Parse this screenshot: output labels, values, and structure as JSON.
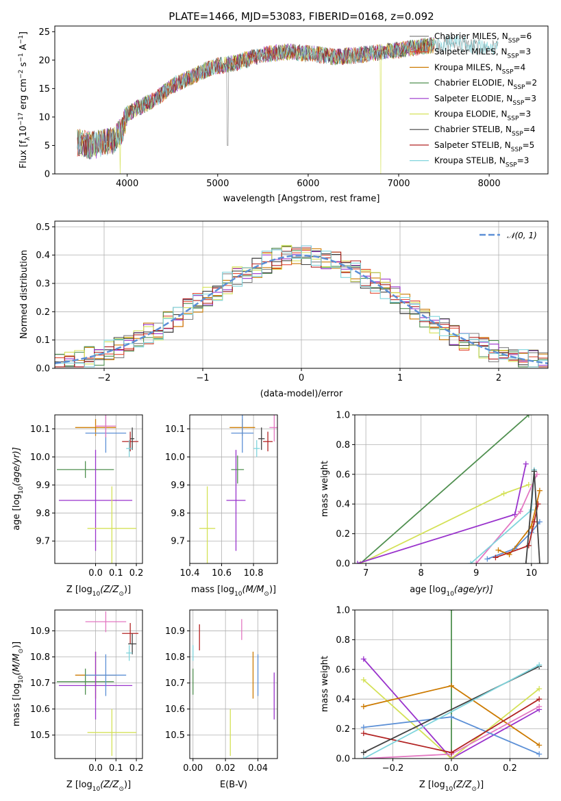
{
  "chart_data": [
    {
      "id": "spectrum",
      "type": "line",
      "title": "PLATE=1466, MJD=53083, FIBERID=0168, z=0.092",
      "xlabel": "wavelength [Angstrom, rest frame]",
      "ylabel": "Flux [f$_\\lambda$10$^{-17}$ erg cm$^{-2}$ s$^{-1}$ A$^{-1}$]",
      "ylabel_parts": [
        "Flux [f",
        "λ",
        "10",
        "−17",
        " erg cm",
        "−2",
        " s",
        "−1",
        " A",
        "−1",
        "]"
      ],
      "xlim": [
        3200,
        8650
      ],
      "ylim": [
        0,
        26
      ],
      "xticks": [
        4000,
        5000,
        6000,
        7000,
        8000
      ],
      "yticks": [
        0,
        5,
        10,
        15,
        20,
        25
      ],
      "legend_position": "right",
      "series": [
        {
          "name": "Chabrier MILES, N$_{SSP}$=6",
          "label_main": "Chabrier MILES, N",
          "label_sub": "SSP",
          "label_tail": "=6",
          "color": "#808080"
        },
        {
          "name": "Salpeter MILES, N$_{SSP}$=3",
          "label_main": "Salpeter MILES, N",
          "label_sub": "SSP",
          "label_tail": "=3",
          "color": "#e34a33"
        },
        {
          "name": "Kroupa MILES, N$_{SSP}$=4",
          "label_main": "Kroupa MILES, N",
          "label_sub": "SSP",
          "label_tail": "=4",
          "color": "#cc7a00"
        },
        {
          "name": "Chabrier ELODIE, N$_{SSP}$=2",
          "label_main": "Chabrier ELODIE, N",
          "label_sub": "SSP",
          "label_tail": "=2",
          "color": "#4f8f4f"
        },
        {
          "name": "Salpeter ELODIE, N$_{SSP}$=3",
          "label_main": "Salpeter ELODIE, N",
          "label_sub": "SSP",
          "label_tail": "=3",
          "color": "#9932cc"
        },
        {
          "name": "Kroupa ELODIE, N$_{SSP}$=3",
          "label_main": "Kroupa ELODIE, N",
          "label_sub": "SSP",
          "label_tail": "=3",
          "color": "#d4e157"
        },
        {
          "name": "Chabrier STELIB, N$_{SSP}$=4",
          "label_main": "Chabrier STELIB, N",
          "label_sub": "SSP",
          "label_tail": "=4",
          "color": "#404040"
        },
        {
          "name": "Salpeter STELIB, N$_{SSP}$=5",
          "label_main": "Salpeter STELIB, N",
          "label_sub": "SSP",
          "label_tail": "=5",
          "color": "#b22222"
        },
        {
          "name": "Kroupa STELIB, N$_{SSP}$=3",
          "label_main": "Kroupa STELIB, N",
          "label_sub": "SSP",
          "label_tail": "=3",
          "color": "#7fd4dc"
        }
      ],
      "continuum_knots": [
        [
          3450,
          5.5
        ],
        [
          3600,
          5
        ],
        [
          3750,
          5.5
        ],
        [
          3850,
          5.8
        ],
        [
          3950,
          8
        ],
        [
          4000,
          10.5
        ],
        [
          4100,
          11.5
        ],
        [
          4300,
          13
        ],
        [
          4500,
          15.5
        ],
        [
          4700,
          17
        ],
        [
          4900,
          18.5
        ],
        [
          5000,
          19
        ],
        [
          5200,
          19.5
        ],
        [
          5500,
          21
        ],
        [
          5800,
          21.5
        ],
        [
          6100,
          21
        ],
        [
          6300,
          20.5
        ],
        [
          6600,
          21
        ],
        [
          7000,
          21.8
        ],
        [
          7300,
          22.5
        ],
        [
          7600,
          23
        ],
        [
          8000,
          22
        ],
        [
          8100,
          22.5
        ]
      ],
      "end_x": {
        "default": 4050,
        "first_group": 7400,
        "extended": 8100
      },
      "spikes": [
        {
          "x": 5110,
          "y": 5
        },
        {
          "x": 6800,
          "y": 0
        },
        {
          "x": 7410,
          "y": 0
        },
        {
          "x": 3920,
          "y": 0
        }
      ]
    },
    {
      "id": "residual-hist",
      "type": "step",
      "xlabel": "(data-model)/error",
      "ylabel": "Normed distribution",
      "xlim": [
        -2.5,
        2.5
      ],
      "ylim": [
        0,
        0.52
      ],
      "xticks": [
        -2,
        -1,
        0,
        1,
        2
      ],
      "xtick_labels": [
        "−2",
        "−1",
        "0",
        "1",
        "2"
      ],
      "yticks": [
        0,
        0.1,
        0.2,
        0.3,
        0.4,
        0.5
      ],
      "ytick_labels": [
        "0.0",
        "0.1",
        "0.2",
        "0.3",
        "0.4",
        "0.5"
      ],
      "bin_width": 0.1,
      "gaussian_label": "𝒩(0, 1)",
      "gaussian_color": "#5b8fd6",
      "series_colors": [
        "#808080",
        "#e34a33",
        "#cc7a00",
        "#4f8f4f",
        "#9932cc",
        "#d4e157",
        "#404040",
        "#b22222",
        "#7fd4dc"
      ]
    },
    {
      "id": "age-vs-Z",
      "type": "errorbar",
      "xlabel_main": "Z [log",
      "xlabel_sub": "10",
      "xlabel_tail": "(Z/Z",
      "xlabel_end": ")]",
      "ylabel_main": "age  [log",
      "ylabel_sub": "10",
      "ylabel_tail": "(age/yr)]",
      "xlim": [
        -0.2,
        0.23
      ],
      "ylim": [
        9.62,
        10.15
      ],
      "xticks": [
        0.0,
        0.1,
        0.2
      ],
      "xtick_labels": [
        "0.0",
        "0.1",
        "0.2"
      ],
      "yticks": [
        9.7,
        9.8,
        9.9,
        10.0,
        10.1
      ],
      "yticks_labels": [
        "9.7",
        "9.8",
        "9.9",
        "10.0",
        "10.1"
      ],
      "points": [
        {
          "color": "#cc7a00",
          "x": 0.0,
          "xerr": 0.1,
          "y": 10.105,
          "yerr": 0.03
        },
        {
          "color": "#4f8f4f",
          "x": -0.05,
          "xerr": 0.14,
          "y": 9.955,
          "yerr": 0.03
        },
        {
          "color": "#9932cc",
          "x": 0.0,
          "xerr": 0.18,
          "y": 9.845,
          "yerr": 0.18
        },
        {
          "color": "#d4e157",
          "x": 0.08,
          "xerr": 0.12,
          "y": 9.745,
          "yerr": 0.15
        },
        {
          "color": "#5b8fd6",
          "x": 0.05,
          "xerr": 0.1,
          "y": 10.085,
          "yerr": 0.07
        },
        {
          "color": "#e377c2",
          "x": 0.05,
          "xerr": 0.05,
          "y": 10.11,
          "yerr": 0.04
        },
        {
          "color": "#b22222",
          "x": 0.17,
          "xerr": 0.04,
          "y": 10.055,
          "yerr": 0.035
        },
        {
          "color": "#404040",
          "x": 0.18,
          "xerr": 0.01,
          "y": 10.065,
          "yerr": 0.04
        },
        {
          "color": "#7fd4dc",
          "x": 0.165,
          "xerr": 0.015,
          "y": 10.03,
          "yerr": 0.03
        }
      ]
    },
    {
      "id": "age-vs-mass",
      "type": "errorbar",
      "xlabel_main": "mass [log",
      "xlabel_sub": "10",
      "xlabel_tail": "(M/M",
      "xlabel_end": ")]",
      "xlim": [
        10.4,
        10.95
      ],
      "ylim": [
        9.62,
        10.15
      ],
      "xticks": [
        10.4,
        10.6,
        10.8
      ],
      "xtick_labels": [
        "10.4",
        "10.6",
        "10.8"
      ],
      "yticks": [
        9.7,
        9.8,
        9.9,
        10.0,
        10.1
      ],
      "yticks_labels": [
        "9.7",
        "9.8",
        "9.9",
        "10.0",
        "10.1"
      ],
      "points": [
        {
          "color": "#cc7a00",
          "x": 10.73,
          "xerr": 0.08,
          "y": 10.105,
          "yerr": 0.03
        },
        {
          "color": "#4f8f4f",
          "x": 10.7,
          "xerr": 0.04,
          "y": 9.955,
          "yerr": 0.05
        },
        {
          "color": "#9932cc",
          "x": 10.69,
          "xerr": 0.06,
          "y": 9.845,
          "yerr": 0.18
        },
        {
          "color": "#d4e157",
          "x": 10.51,
          "xerr": 0.05,
          "y": 9.745,
          "yerr": 0.15
        },
        {
          "color": "#5b8fd6",
          "x": 10.73,
          "xerr": 0.07,
          "y": 10.085,
          "yerr": 0.07
        },
        {
          "color": "#e377c2",
          "x": 10.93,
          "xerr": 0.03,
          "y": 10.105,
          "yerr": 0.05
        },
        {
          "color": "#b22222",
          "x": 10.89,
          "xerr": 0.03,
          "y": 10.055,
          "yerr": 0.035
        },
        {
          "color": "#404040",
          "x": 10.85,
          "xerr": 0.02,
          "y": 10.065,
          "yerr": 0.04
        },
        {
          "color": "#7fd4dc",
          "x": 10.82,
          "xerr": 0.02,
          "y": 10.03,
          "yerr": 0.03
        }
      ]
    },
    {
      "id": "weight-vs-age",
      "type": "line",
      "xlabel_main": "age  [log",
      "xlabel_sub": "10",
      "xlabel_tail": "(age/yr)]",
      "ylabel": "mass weight",
      "xlim": [
        6.8,
        10.3
      ],
      "ylim": [
        0,
        1
      ],
      "xticks": [
        7,
        8,
        9,
        10
      ],
      "xtick_labels": [
        "7",
        "8",
        "9",
        "10"
      ],
      "yticks": [
        0,
        0.2,
        0.4,
        0.6,
        0.8,
        1.0
      ],
      "ytick_labels": [
        "0.0",
        "0.2",
        "0.4",
        "0.6",
        "0.8",
        "1.0"
      ],
      "series": [
        {
          "color": "#4f8f4f",
          "points": [
            [
              6.9,
              0.0
            ],
            [
              9.95,
              1.0
            ]
          ]
        },
        {
          "color": "#d4e157",
          "points": [
            [
              6.9,
              0.0
            ],
            [
              9.5,
              0.47
            ],
            [
              9.95,
              0.53
            ]
          ]
        },
        {
          "color": "#9932cc",
          "points": [
            [
              6.85,
              0.0
            ],
            [
              9.7,
              0.33
            ],
            [
              9.9,
              0.67
            ]
          ]
        },
        {
          "color": "#e377c2",
          "points": [
            [
              9.0,
              0.0
            ],
            [
              9.8,
              0.35
            ],
            [
              10.1,
              0.6
            ]
          ]
        },
        {
          "color": "#7fd4dc",
          "points": [
            [
              8.9,
              0.0
            ],
            [
              10.0,
              0.36
            ],
            [
              10.05,
              0.63
            ]
          ]
        },
        {
          "color": "#5b8fd6",
          "points": [
            [
              9.2,
              0.03
            ],
            [
              9.7,
              0.1
            ],
            [
              10.0,
              0.21
            ],
            [
              10.15,
              0.28
            ]
          ]
        },
        {
          "color": "#cc7a00",
          "points": [
            [
              9.4,
              0.09
            ],
            [
              9.6,
              0.06
            ],
            [
              10.0,
              0.25
            ],
            [
              10.15,
              0.49
            ]
          ]
        },
        {
          "color": "#b22222",
          "points": [
            [
              9.35,
              0.04
            ],
            [
              9.95,
              0.12
            ],
            [
              10.05,
              0.28
            ],
            [
              10.12,
              0.4
            ]
          ]
        },
        {
          "color": "#404040",
          "points": [
            [
              9.9,
              0.0
            ],
            [
              10.05,
              0.62
            ],
            [
              10.15,
              0.0
            ]
          ]
        }
      ]
    },
    {
      "id": "mass-vs-Z",
      "type": "errorbar",
      "xlabel_main": "Z [log",
      "xlabel_sub": "10",
      "xlabel_tail": "(Z/Z",
      "xlabel_end": ")]",
      "ylabel_main": "mass [log",
      "ylabel_sub": "10",
      "ylabel_tail": "(M/M",
      "ylabel_end": ")]",
      "xlim": [
        -0.2,
        0.23
      ],
      "ylim": [
        10.41,
        10.98
      ],
      "xticks": [
        0.0,
        0.1,
        0.2
      ],
      "xtick_labels": [
        "0.0",
        "0.1",
        "0.2"
      ],
      "yticks": [
        10.5,
        10.6,
        10.7,
        10.8,
        10.9
      ],
      "yticks_labels": [
        "10.5",
        "10.6",
        "10.7",
        "10.8",
        "10.9"
      ],
      "points": [
        {
          "color": "#cc7a00",
          "x": 0.0,
          "xerr": 0.1,
          "y": 10.73,
          "yerr": 0.09
        },
        {
          "color": "#4f8f4f",
          "x": -0.05,
          "xerr": 0.14,
          "y": 10.705,
          "yerr": 0.05
        },
        {
          "color": "#9932cc",
          "x": 0.0,
          "xerr": 0.18,
          "y": 10.69,
          "yerr": 0.13
        },
        {
          "color": "#d4e157",
          "x": 0.08,
          "xerr": 0.12,
          "y": 10.51,
          "yerr": 0.09
        },
        {
          "color": "#5b8fd6",
          "x": 0.05,
          "xerr": 0.1,
          "y": 10.73,
          "yerr": 0.08
        },
        {
          "color": "#e377c2",
          "x": 0.05,
          "xerr": 0.1,
          "y": 10.935,
          "yerr": 0.04
        },
        {
          "color": "#b22222",
          "x": 0.17,
          "xerr": 0.04,
          "y": 10.89,
          "yerr": 0.04
        },
        {
          "color": "#404040",
          "x": 0.18,
          "xerr": 0.02,
          "y": 10.85,
          "yerr": 0.04
        },
        {
          "color": "#7fd4dc",
          "x": 0.165,
          "xerr": 0.015,
          "y": 10.815,
          "yerr": 0.03
        }
      ]
    },
    {
      "id": "mass-vs-ebv",
      "type": "errorbar",
      "xlabel": "E(B-V)",
      "xlim": [
        -0.002,
        0.052
      ],
      "ylim": [
        10.41,
        10.98
      ],
      "xticks": [
        0.0,
        0.02,
        0.04
      ],
      "xtick_labels": [
        "0.00",
        "0.02",
        "0.04"
      ],
      "yticks": [
        10.5,
        10.6,
        10.7,
        10.8,
        10.9
      ],
      "yticks_labels": [
        "10.5",
        "10.6",
        "10.7",
        "10.8",
        "10.9"
      ],
      "points": [
        {
          "color": "#4f8f4f",
          "x": 0.0,
          "xerr": 0,
          "y": 10.705,
          "yerr": 0.05
        },
        {
          "color": "#7fd4dc",
          "x": 0.0,
          "xerr": 0,
          "y": 10.815,
          "yerr": 0.03
        },
        {
          "color": "#b22222",
          "x": 0.004,
          "xerr": 0,
          "y": 10.875,
          "yerr": 0.05
        },
        {
          "color": "#d4e157",
          "x": 0.023,
          "xerr": 0,
          "y": 10.51,
          "yerr": 0.09
        },
        {
          "color": "#e377c2",
          "x": 0.03,
          "xerr": 0,
          "y": 10.905,
          "yerr": 0.04
        },
        {
          "color": "#cc7a00",
          "x": 0.037,
          "xerr": 0,
          "y": 10.73,
          "yerr": 0.09
        },
        {
          "color": "#5b8fd6",
          "x": 0.04,
          "xerr": 0,
          "y": 10.73,
          "yerr": 0.08
        },
        {
          "color": "#9932cc",
          "x": 0.05,
          "xerr": 0,
          "y": 10.65,
          "yerr": 0.09
        }
      ]
    },
    {
      "id": "weight-vs-Z",
      "type": "line",
      "xlabel_main": "Z [log",
      "xlabel_sub": "10",
      "xlabel_tail": "(Z/Z",
      "xlabel_end": ")]",
      "ylabel": "mass weight",
      "xlim": [
        -0.33,
        0.33
      ],
      "ylim": [
        0,
        1
      ],
      "xticks": [
        -0.2,
        0.0,
        0.2
      ],
      "xtick_labels": [
        "−0.2",
        "0.0",
        "0.2"
      ],
      "yticks": [
        0,
        0.2,
        0.4,
        0.6,
        0.8,
        1.0
      ],
      "ytick_labels": [
        "0.0",
        "0.2",
        "0.4",
        "0.6",
        "0.8",
        "1.0"
      ],
      "series": [
        {
          "color": "#4f8f4f",
          "points": [
            [
              0.0,
              0.0
            ],
            [
              0.0,
              1.0
            ]
          ]
        },
        {
          "color": "#9932cc",
          "points": [
            [
              -0.3,
              0.67
            ],
            [
              0.0,
              0.0
            ],
            [
              0.3,
              0.33
            ]
          ]
        },
        {
          "color": "#d4e157",
          "points": [
            [
              -0.3,
              0.53
            ],
            [
              0.0,
              0.0
            ],
            [
              0.3,
              0.47
            ]
          ]
        },
        {
          "color": "#cc7a00",
          "points": [
            [
              -0.3,
              0.35
            ],
            [
              0.0,
              0.49
            ],
            [
              0.3,
              0.09
            ]
          ]
        },
        {
          "color": "#e377c2",
          "points": [
            [
              -0.3,
              0.0
            ],
            [
              0.0,
              0.03
            ],
            [
              0.3,
              0.35
            ]
          ]
        },
        {
          "color": "#5b8fd6",
          "points": [
            [
              -0.3,
              0.21
            ],
            [
              0.0,
              0.28
            ],
            [
              0.3,
              0.03
            ]
          ]
        },
        {
          "color": "#b22222",
          "points": [
            [
              -0.3,
              0.17
            ],
            [
              0.0,
              0.04
            ],
            [
              0.3,
              0.4
            ]
          ]
        },
        {
          "color": "#404040",
          "points": [
            [
              -0.3,
              0.04
            ],
            [
              0.3,
              0.62
            ]
          ]
        },
        {
          "color": "#7fd4dc",
          "points": [
            [
              -0.3,
              0.0
            ],
            [
              0.3,
              0.63
            ]
          ]
        }
      ]
    }
  ]
}
